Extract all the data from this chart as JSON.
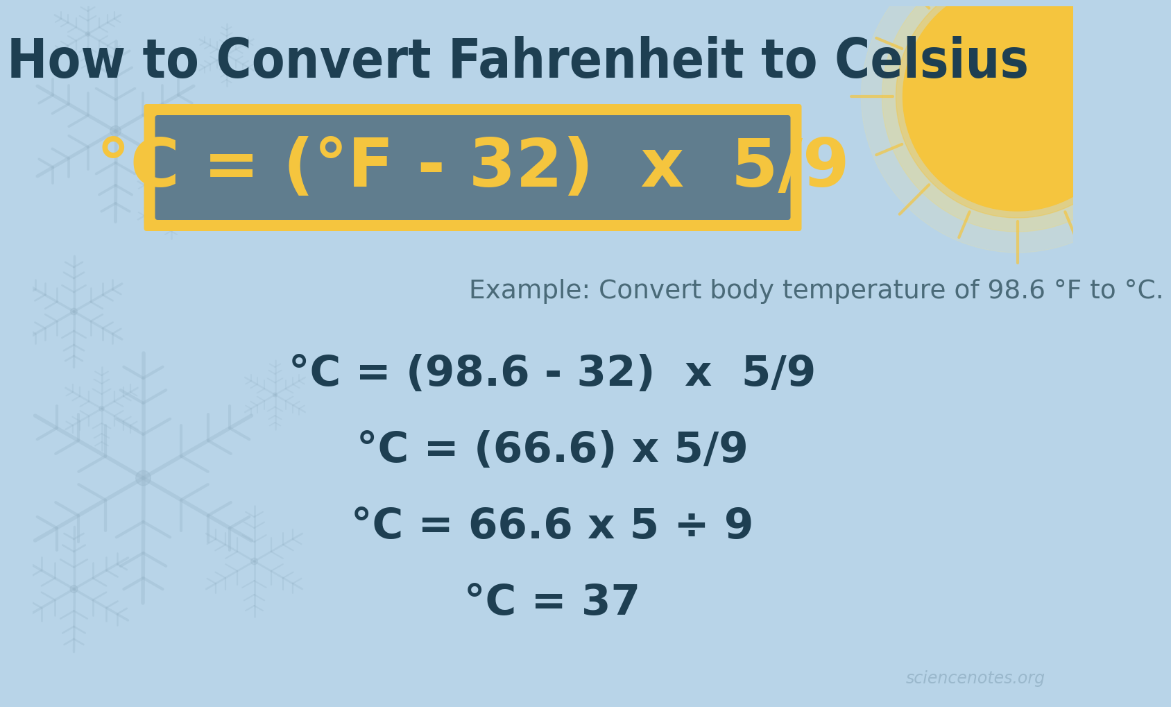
{
  "title": "How to Convert Fahrenheit to Celsius",
  "title_color": "#1e3f52",
  "title_fontsize": 56,
  "bg_color": "#b8d4e8",
  "formula_text": "°C = (°F - 32)  x  5/9",
  "formula_text_color": "#f5c53e",
  "formula_bg_color": "#607d8e",
  "formula_border_color": "#f5c53e",
  "example_text": "Example: Convert body temperature of 98.6 °F to °C.",
  "example_color": "#4a6a78",
  "step1": "°C = (98.6 - 32)  x  5/9",
  "step2": "°C = (66.6) x 5/9",
  "step3": "°C = 66.6 x 5 ÷ 9",
  "step4": "°C = 37",
  "steps_color": "#1e3f52",
  "steps_fontsize": 44,
  "example_fontsize": 27,
  "watermark": "sciencenotes.org",
  "watermark_color": "#9ab8cc",
  "snowflake_color": "#9ab8cc",
  "sun_color": "#f5c53e",
  "sun_ray_color": "#f5c53e",
  "sun_glow_color": "#ffe070"
}
